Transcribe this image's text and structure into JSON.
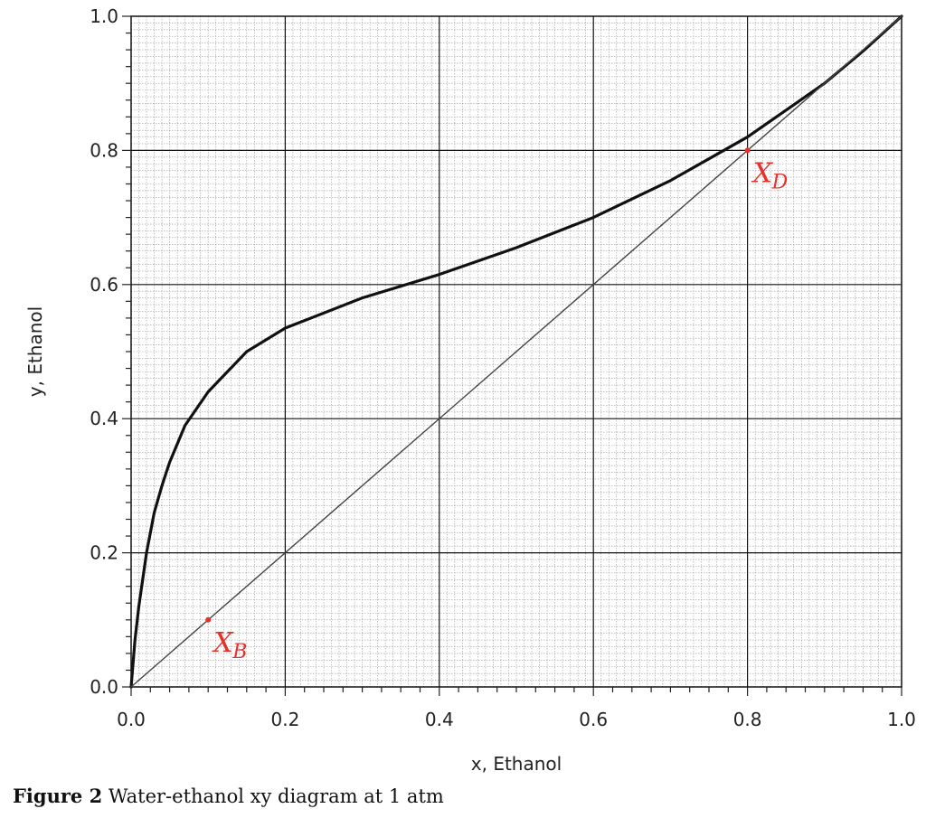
{
  "chart_data": {
    "type": "line",
    "title": "",
    "xlabel": "x, Ethanol",
    "ylabel": "y, Ethanol",
    "xlim": [
      0,
      1
    ],
    "ylim": [
      0,
      1
    ],
    "x_ticks": [
      "0.0",
      "0.2",
      "0.4",
      "0.6",
      "0.8",
      "1.0"
    ],
    "y_ticks": [
      "0.0",
      "0.2",
      "0.4",
      "0.6",
      "0.8",
      "1.0"
    ],
    "grid": true,
    "minor_grid": true,
    "series": [
      {
        "name": "",
        "points": [
          [
            0.0,
            0.0
          ],
          [
            0.005,
            0.07
          ],
          [
            0.01,
            0.12
          ],
          [
            0.02,
            0.2
          ],
          [
            0.03,
            0.26
          ],
          [
            0.04,
            0.3
          ],
          [
            0.05,
            0.335
          ],
          [
            0.07,
            0.39
          ],
          [
            0.1,
            0.44
          ],
          [
            0.15,
            0.5
          ],
          [
            0.2,
            0.535
          ],
          [
            0.3,
            0.58
          ],
          [
            0.4,
            0.615
          ],
          [
            0.5,
            0.655
          ],
          [
            0.6,
            0.7
          ],
          [
            0.7,
            0.755
          ],
          [
            0.8,
            0.82
          ],
          [
            0.85,
            0.86
          ],
          [
            0.9,
            0.9
          ],
          [
            0.95,
            0.948
          ],
          [
            1.0,
            1.0
          ]
        ]
      },
      {
        "name": "",
        "points": [
          [
            0.0,
            0.0
          ],
          [
            1.0,
            1.0
          ]
        ]
      }
    ],
    "annotations": [
      {
        "text": "X",
        "subscript": "D",
        "x": 0.8,
        "y": 0.8,
        "color": "#e8302a"
      },
      {
        "text": "X",
        "subscript": "B",
        "x": 0.1,
        "y": 0.1,
        "color": "#e8302a"
      }
    ]
  },
  "caption": {
    "label": "Figure 2",
    "text": " Water-ethanol xy diagram at 1 atm"
  }
}
